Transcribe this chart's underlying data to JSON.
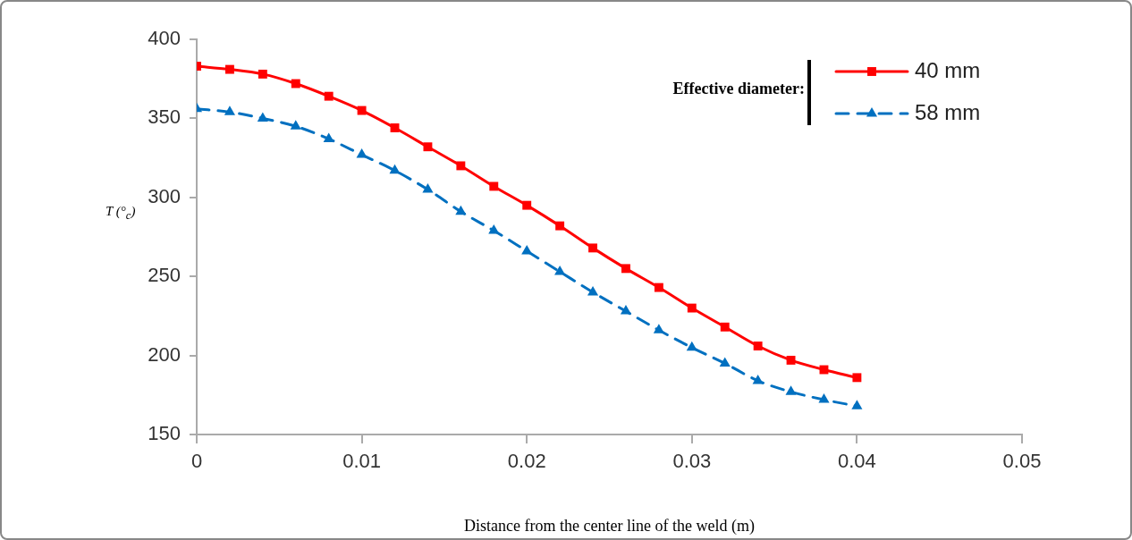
{
  "chart_data": {
    "type": "line",
    "xlabel": "Distance from the center line of the weld (m)",
    "ylabel": "T (°$_{c}$)",
    "legend_title": "Effective diameter:",
    "legend": "top right",
    "grid": false,
    "x": [
      0,
      0.002,
      0.004,
      0.006,
      0.008,
      0.01,
      0.012,
      0.014,
      0.016,
      0.018,
      0.02,
      0.022,
      0.024,
      0.026,
      0.028,
      0.03,
      0.032,
      0.034,
      0.036,
      0.038,
      0.04
    ],
    "xlim": [
      0,
      0.05
    ],
    "xticks": [
      0,
      0.01,
      0.02,
      0.03,
      0.04,
      0.05
    ],
    "ylim": [
      150,
      400
    ],
    "yticks": [
      150,
      200,
      250,
      300,
      350,
      400
    ],
    "series": [
      {
        "name": "40 mm",
        "color": "#ff0000",
        "marker": "square",
        "line_style": "solid",
        "values": [
          383,
          381,
          378,
          372,
          364,
          355,
          344,
          332,
          320,
          307,
          295,
          282,
          268,
          255,
          243,
          230,
          218,
          206,
          197,
          191,
          186
        ]
      },
      {
        "name": "58 mm",
        "color": "#0070c0",
        "marker": "triangle",
        "line_style": "dashed",
        "values": [
          356,
          354,
          350,
          345,
          337,
          327,
          317,
          305,
          291,
          279,
          266,
          253,
          240,
          228,
          216,
          205,
          195,
          184,
          177,
          172,
          168
        ]
      }
    ]
  }
}
